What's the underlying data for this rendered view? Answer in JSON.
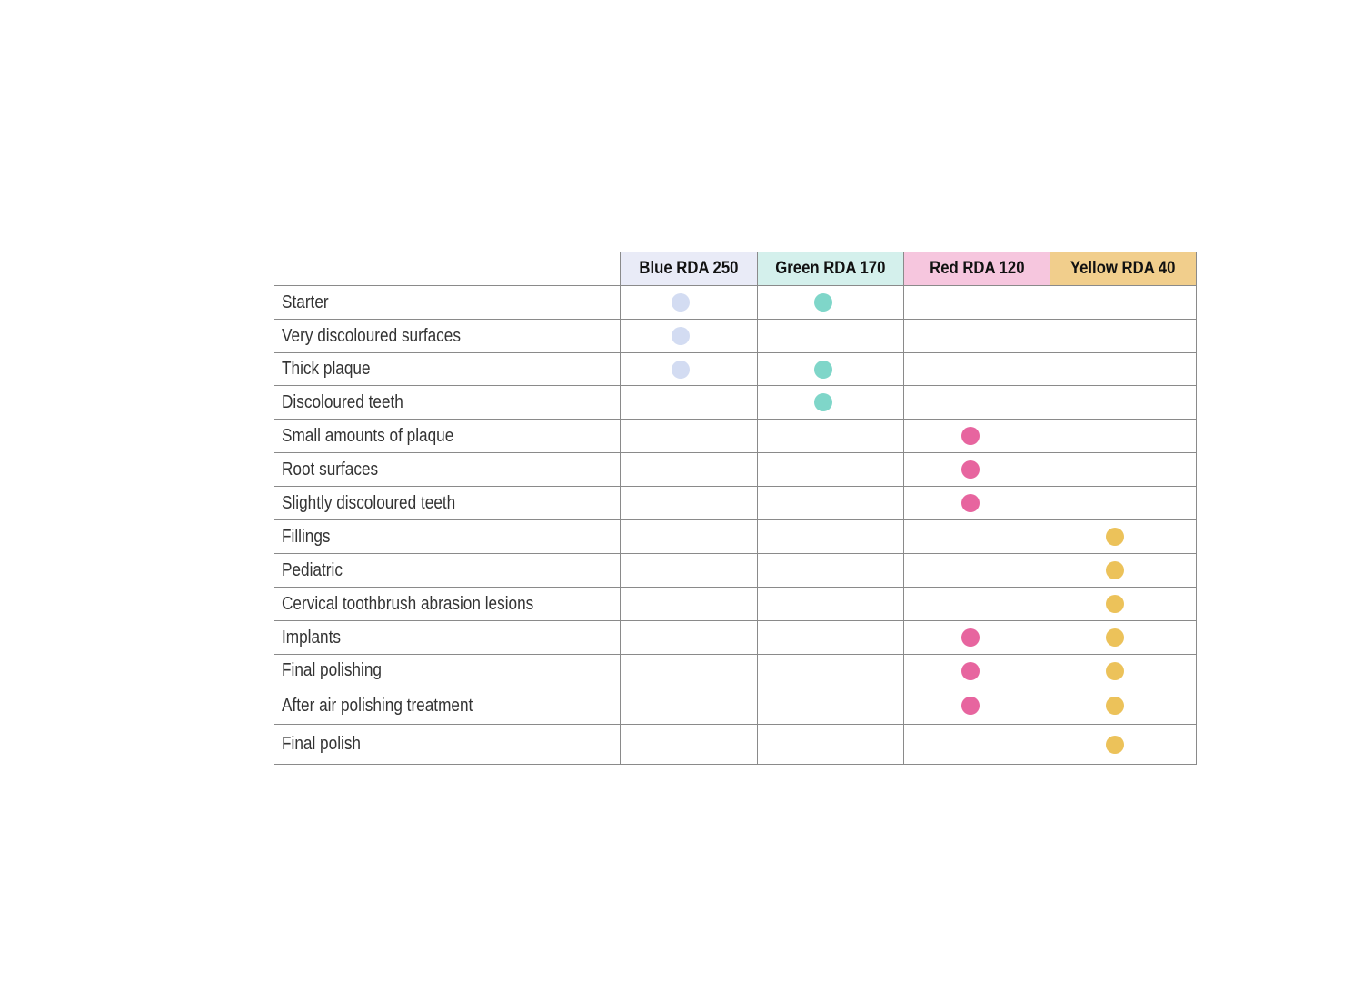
{
  "chart_data": {
    "type": "table",
    "columns": [
      {
        "label": "Blue RDA 250",
        "header_color": "#e9ebf7",
        "dot_color": "#d3dcf2"
      },
      {
        "label": "Green RDA 170",
        "header_color": "#d4f0ec",
        "dot_color": "#7fd6c9"
      },
      {
        "label": "Red RDA 120",
        "header_color": "#f6c6de",
        "dot_color": "#e7659f"
      },
      {
        "label": "Yellow RDA 40",
        "header_color": "#f1ce8c",
        "dot_color": "#ecc25a"
      }
    ],
    "rows": [
      {
        "label": "Starter",
        "marks": [
          true,
          true,
          false,
          false
        ]
      },
      {
        "label": "Very discoloured surfaces",
        "marks": [
          true,
          false,
          false,
          false
        ]
      },
      {
        "label": "Thick plaque",
        "marks": [
          true,
          true,
          false,
          false
        ]
      },
      {
        "label": "Discoloured teeth",
        "marks": [
          false,
          true,
          false,
          false
        ]
      },
      {
        "label": "Small amounts of plaque",
        "marks": [
          false,
          false,
          true,
          false
        ]
      },
      {
        "label": "Root surfaces",
        "marks": [
          false,
          false,
          true,
          false
        ]
      },
      {
        "label": "Slightly discoloured teeth",
        "marks": [
          false,
          false,
          true,
          false
        ]
      },
      {
        "label": "Fillings",
        "marks": [
          false,
          false,
          false,
          true
        ]
      },
      {
        "label": "Pediatric",
        "marks": [
          false,
          false,
          false,
          true
        ]
      },
      {
        "label": "Cervical toothbrush abrasion lesions",
        "marks": [
          false,
          false,
          false,
          true
        ]
      },
      {
        "label": "Implants",
        "marks": [
          false,
          false,
          true,
          true
        ]
      },
      {
        "label": "Final polishing",
        "marks": [
          false,
          false,
          true,
          true
        ]
      },
      {
        "label": "After air polishing treatment",
        "marks": [
          false,
          false,
          true,
          true
        ]
      },
      {
        "label": "Final polish",
        "marks": [
          false,
          false,
          false,
          true
        ]
      }
    ]
  }
}
